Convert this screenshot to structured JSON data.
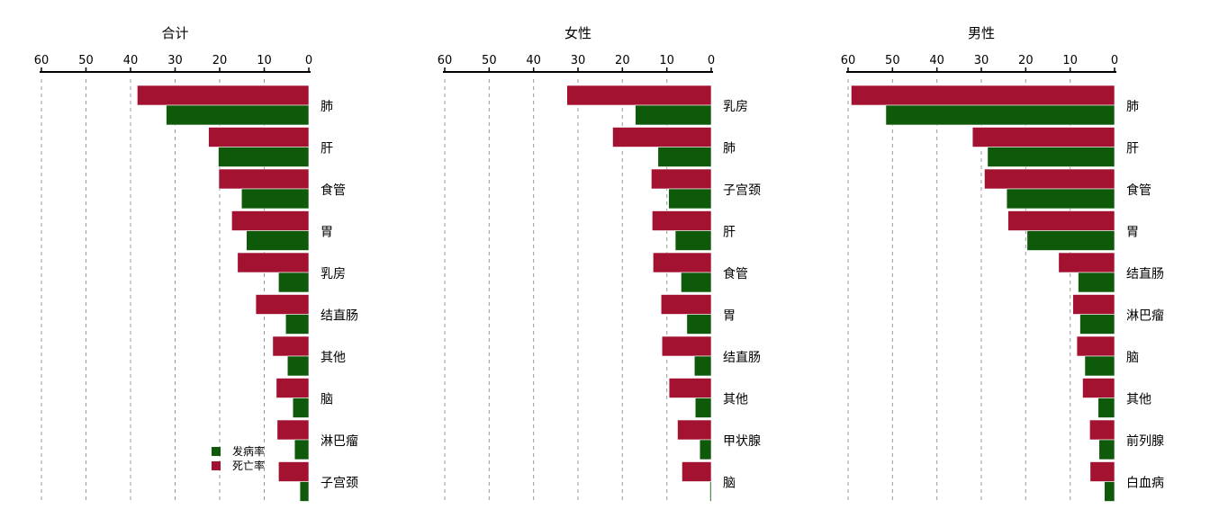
{
  "legend": {
    "items": [
      {
        "label": "发病率",
        "color": "#0f5a0a"
      },
      {
        "label": "死亡率",
        "color": "#a31230"
      }
    ],
    "placement": "bottom-left of first panel"
  },
  "colors": {
    "incidence": "#0f5a0a",
    "mortality": "#a31230",
    "grid": "#9a9a9a",
    "axis": "#000000"
  },
  "chart_data": [
    {
      "type": "bar",
      "orientation": "horizontal",
      "title": "合计",
      "categories": [
        "肺",
        "肝",
        "食管",
        "胃",
        "乳房",
        "结直肠",
        "其他",
        "脑",
        "淋巴瘤",
        "子宫颈"
      ],
      "series": [
        {
          "name": "死亡率",
          "values": [
            38.5,
            22.5,
            20.2,
            17.3,
            16.0,
            11.9,
            8.1,
            7.3,
            7.1,
            6.8
          ]
        },
        {
          "name": "发病率",
          "values": [
            32.0,
            20.3,
            15.1,
            14.0,
            6.8,
            5.2,
            4.8,
            3.6,
            3.2,
            2.0
          ]
        }
      ],
      "xlim": [
        0,
        60
      ],
      "xticks": [
        60,
        50,
        40,
        30,
        20,
        10,
        0
      ],
      "axis_position": "top",
      "x_reversed": true,
      "grid": true
    },
    {
      "type": "bar",
      "orientation": "horizontal",
      "title": "女性",
      "categories": [
        "乳房",
        "肺",
        "子宫颈",
        "肝",
        "食管",
        "胃",
        "结直肠",
        "其他",
        "甲状腺",
        "脑"
      ],
      "series": [
        {
          "name": "死亡率",
          "values": [
            32.5,
            22.2,
            13.5,
            13.3,
            13.1,
            11.3,
            11.1,
            9.5,
            7.6,
            6.6
          ]
        },
        {
          "name": "发病率",
          "values": [
            17.1,
            12.0,
            9.6,
            8.1,
            6.8,
            5.5,
            3.8,
            3.6,
            2.6,
            0.3
          ]
        }
      ],
      "xlim": [
        0,
        60
      ],
      "xticks": [
        60,
        50,
        40,
        30,
        20,
        10,
        0
      ],
      "axis_position": "top",
      "x_reversed": true,
      "grid": true
    },
    {
      "type": "bar",
      "orientation": "horizontal",
      "title": "男性",
      "categories": [
        "肺",
        "肝",
        "食管",
        "胃",
        "结直肠",
        "淋巴瘤",
        "脑",
        "其他",
        "前列腺",
        "白血病"
      ],
      "series": [
        {
          "name": "死亡率",
          "values": [
            59.3,
            32.0,
            29.3,
            24.0,
            12.6,
            9.4,
            8.5,
            7.2,
            5.6,
            5.5
          ]
        },
        {
          "name": "发病率",
          "values": [
            51.5,
            28.6,
            24.3,
            19.7,
            8.2,
            7.8,
            6.7,
            3.7,
            3.5,
            2.3
          ]
        }
      ],
      "xlim": [
        0,
        60
      ],
      "xticks": [
        60,
        50,
        40,
        30,
        20,
        10,
        0
      ],
      "axis_position": "top",
      "x_reversed": true,
      "grid": true
    }
  ]
}
